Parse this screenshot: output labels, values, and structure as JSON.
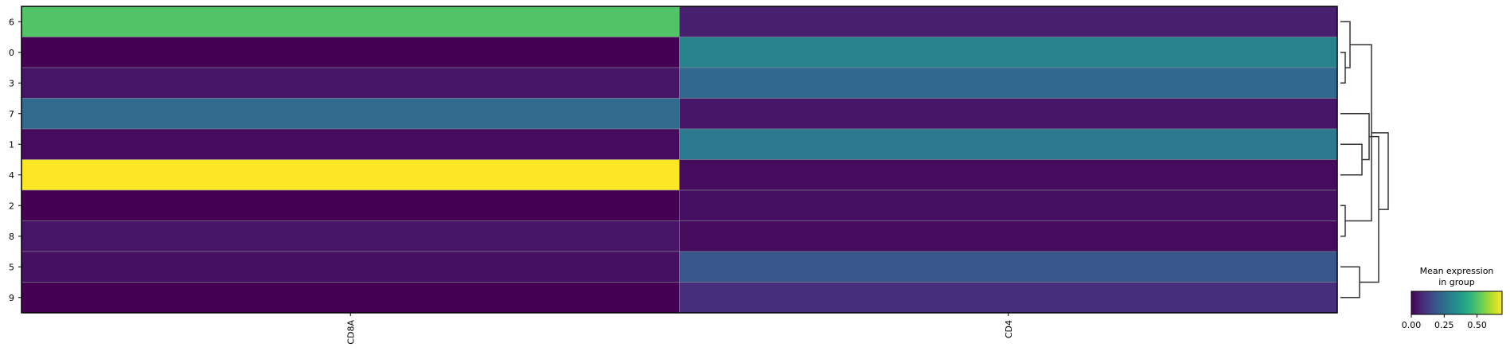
{
  "chart_data": {
    "type": "heatmap",
    "title": "",
    "xlabel": "",
    "ylabel": "",
    "x_categories": [
      "CD8A",
      "CD4"
    ],
    "y_categories": [
      "6",
      "0",
      "3",
      "7",
      "1",
      "4",
      "2",
      "8",
      "5",
      "9"
    ],
    "values": [
      [
        0.5,
        0.06
      ],
      [
        0.0,
        0.31
      ],
      [
        0.04,
        0.23
      ],
      [
        0.24,
        0.04
      ],
      [
        0.02,
        0.28
      ],
      [
        0.69,
        0.02
      ],
      [
        0.0,
        0.03
      ],
      [
        0.04,
        0.02
      ],
      [
        0.03,
        0.19
      ],
      [
        0.0,
        0.09
      ]
    ],
    "colormap": "viridis",
    "vmin": 0.0,
    "vmax": 0.69,
    "colorbar": {
      "title_line1": "Mean expression",
      "title_line2": "in group",
      "ticks": [
        0.0,
        0.25,
        0.5
      ],
      "tick_labels": [
        "0.00",
        "0.25",
        "0.50"
      ]
    },
    "dendrogram": {
      "position": "right",
      "merges": [
        {
          "a": 1,
          "b": 2,
          "height": 0.1
        },
        {
          "a": 6,
          "b": 7,
          "height": 0.1
        },
        {
          "a": 0,
          "b": 10,
          "height": 0.2
        },
        {
          "a": 8,
          "b": 9,
          "height": 0.4
        },
        {
          "a": 4,
          "b": 5,
          "height": 0.45
        },
        {
          "a": 3,
          "b": 14,
          "height": 0.6
        },
        {
          "a": 11,
          "b": 12,
          "height": 0.65
        },
        {
          "a": 13,
          "b": 15,
          "height": 0.8
        },
        {
          "a": 16,
          "b": 17,
          "height": 1.0
        }
      ]
    },
    "grid": false
  }
}
